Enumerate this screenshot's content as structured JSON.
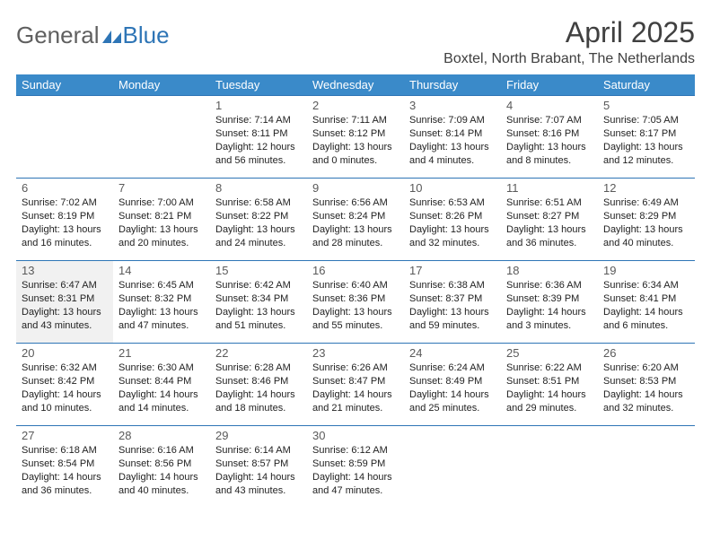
{
  "brand": {
    "left": "General",
    "right": "Blue"
  },
  "title": "April 2025",
  "location": "Boxtel, North Brabant, The Netherlands",
  "header_bg": "#3a8ac9",
  "rule_color": "#2e75b6",
  "shade_color": "#f1f1f1",
  "weekdays": [
    "Sunday",
    "Monday",
    "Tuesday",
    "Wednesday",
    "Thursday",
    "Friday",
    "Saturday"
  ],
  "weeks": [
    [
      null,
      null,
      {
        "n": "1",
        "sr": "7:14 AM",
        "ss": "8:11 PM",
        "dl": "12 hours and 56 minutes."
      },
      {
        "n": "2",
        "sr": "7:11 AM",
        "ss": "8:12 PM",
        "dl": "13 hours and 0 minutes."
      },
      {
        "n": "3",
        "sr": "7:09 AM",
        "ss": "8:14 PM",
        "dl": "13 hours and 4 minutes."
      },
      {
        "n": "4",
        "sr": "7:07 AM",
        "ss": "8:16 PM",
        "dl": "13 hours and 8 minutes."
      },
      {
        "n": "5",
        "sr": "7:05 AM",
        "ss": "8:17 PM",
        "dl": "13 hours and 12 minutes."
      }
    ],
    [
      {
        "n": "6",
        "sr": "7:02 AM",
        "ss": "8:19 PM",
        "dl": "13 hours and 16 minutes."
      },
      {
        "n": "7",
        "sr": "7:00 AM",
        "ss": "8:21 PM",
        "dl": "13 hours and 20 minutes."
      },
      {
        "n": "8",
        "sr": "6:58 AM",
        "ss": "8:22 PM",
        "dl": "13 hours and 24 minutes."
      },
      {
        "n": "9",
        "sr": "6:56 AM",
        "ss": "8:24 PM",
        "dl": "13 hours and 28 minutes."
      },
      {
        "n": "10",
        "sr": "6:53 AM",
        "ss": "8:26 PM",
        "dl": "13 hours and 32 minutes."
      },
      {
        "n": "11",
        "sr": "6:51 AM",
        "ss": "8:27 PM",
        "dl": "13 hours and 36 minutes."
      },
      {
        "n": "12",
        "sr": "6:49 AM",
        "ss": "8:29 PM",
        "dl": "13 hours and 40 minutes."
      }
    ],
    [
      {
        "n": "13",
        "sr": "6:47 AM",
        "ss": "8:31 PM",
        "dl": "13 hours and 43 minutes.",
        "shaded": true
      },
      {
        "n": "14",
        "sr": "6:45 AM",
        "ss": "8:32 PM",
        "dl": "13 hours and 47 minutes."
      },
      {
        "n": "15",
        "sr": "6:42 AM",
        "ss": "8:34 PM",
        "dl": "13 hours and 51 minutes."
      },
      {
        "n": "16",
        "sr": "6:40 AM",
        "ss": "8:36 PM",
        "dl": "13 hours and 55 minutes."
      },
      {
        "n": "17",
        "sr": "6:38 AM",
        "ss": "8:37 PM",
        "dl": "13 hours and 59 minutes."
      },
      {
        "n": "18",
        "sr": "6:36 AM",
        "ss": "8:39 PM",
        "dl": "14 hours and 3 minutes."
      },
      {
        "n": "19",
        "sr": "6:34 AM",
        "ss": "8:41 PM",
        "dl": "14 hours and 6 minutes."
      }
    ],
    [
      {
        "n": "20",
        "sr": "6:32 AM",
        "ss": "8:42 PM",
        "dl": "14 hours and 10 minutes."
      },
      {
        "n": "21",
        "sr": "6:30 AM",
        "ss": "8:44 PM",
        "dl": "14 hours and 14 minutes."
      },
      {
        "n": "22",
        "sr": "6:28 AM",
        "ss": "8:46 PM",
        "dl": "14 hours and 18 minutes."
      },
      {
        "n": "23",
        "sr": "6:26 AM",
        "ss": "8:47 PM",
        "dl": "14 hours and 21 minutes."
      },
      {
        "n": "24",
        "sr": "6:24 AM",
        "ss": "8:49 PM",
        "dl": "14 hours and 25 minutes."
      },
      {
        "n": "25",
        "sr": "6:22 AM",
        "ss": "8:51 PM",
        "dl": "14 hours and 29 minutes."
      },
      {
        "n": "26",
        "sr": "6:20 AM",
        "ss": "8:53 PM",
        "dl": "14 hours and 32 minutes."
      }
    ],
    [
      {
        "n": "27",
        "sr": "6:18 AM",
        "ss": "8:54 PM",
        "dl": "14 hours and 36 minutes."
      },
      {
        "n": "28",
        "sr": "6:16 AM",
        "ss": "8:56 PM",
        "dl": "14 hours and 40 minutes."
      },
      {
        "n": "29",
        "sr": "6:14 AM",
        "ss": "8:57 PM",
        "dl": "14 hours and 43 minutes."
      },
      {
        "n": "30",
        "sr": "6:12 AM",
        "ss": "8:59 PM",
        "dl": "14 hours and 47 minutes."
      },
      null,
      null,
      null
    ]
  ],
  "labels": {
    "sunrise": "Sunrise:",
    "sunset": "Sunset:",
    "daylight": "Daylight:"
  }
}
